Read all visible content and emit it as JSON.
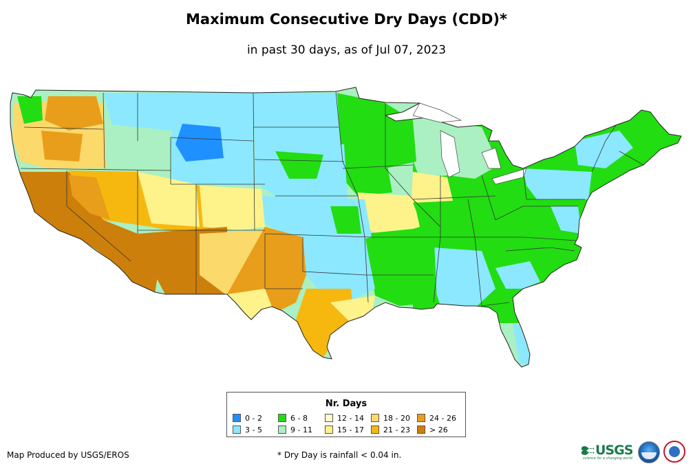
{
  "title": "Maximum Consecutive Dry Days (CDD)*",
  "subtitle": "in past 30 days, as of Jul 07, 2023",
  "legend": {
    "title": "Nr. Days",
    "items": [
      {
        "label": "0 - 2",
        "color": "#1e90ff"
      },
      {
        "label": "3 - 5",
        "color": "#8be8ff"
      },
      {
        "label": "6 - 8",
        "color": "#22dd11"
      },
      {
        "label": "9 - 11",
        "color": "#aaf0c2"
      },
      {
        "label": "12 - 14",
        "color": "#ffffcc"
      },
      {
        "label": "15 - 17",
        "color": "#fef38a"
      },
      {
        "label": "18 - 20",
        "color": "#fbd96b"
      },
      {
        "label": "21 - 23",
        "color": "#f6b80f"
      },
      {
        "label": "24 - 26",
        "color": "#e89e1a"
      },
      {
        "label": "> 26",
        "color": "#cc7f0a"
      }
    ]
  },
  "footer": {
    "credit": "Map Produced by USGS/EROS",
    "footnote": "* Dry Day is rainfall < 0.04 in."
  },
  "logos": {
    "usgs_text": "USGS",
    "usgs_tagline": "science for a changing world"
  }
}
